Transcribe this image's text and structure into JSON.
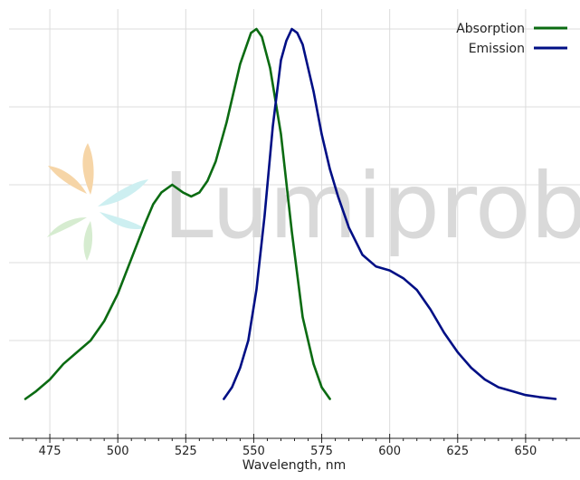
{
  "watermark": {
    "text": "Lumiprobe",
    "petal_colors": [
      "#f6d5a7",
      "#cdeff1",
      "#d6ecd0"
    ]
  },
  "chart_data": {
    "type": "line",
    "title": "",
    "xlabel": "Wavelength, nm",
    "ylabel": "",
    "xlim": [
      460,
      670
    ],
    "ylim": [
      0,
      1
    ],
    "xticks": [
      475,
      500,
      525,
      550,
      575,
      600,
      625,
      650
    ],
    "grid": true,
    "legend_position": "top-right",
    "series": [
      {
        "name": "Absorption",
        "color": "#0b6b12",
        "x": [
          466,
          470,
          475,
          480,
          485,
          490,
          495,
          500,
          505,
          510,
          513,
          516,
          520,
          524,
          527,
          530,
          533,
          536,
          540,
          545,
          549,
          551,
          553,
          556,
          560,
          564,
          568,
          572,
          575,
          578
        ],
        "y": [
          0.05,
          0.07,
          0.1,
          0.14,
          0.17,
          0.2,
          0.25,
          0.32,
          0.41,
          0.5,
          0.55,
          0.58,
          0.6,
          0.58,
          0.57,
          0.58,
          0.61,
          0.66,
          0.76,
          0.91,
          0.99,
          1.0,
          0.98,
          0.9,
          0.73,
          0.48,
          0.26,
          0.14,
          0.08,
          0.05
        ]
      },
      {
        "name": "Emission",
        "color": "#000f85",
        "x": [
          539,
          542,
          545,
          548,
          551,
          554,
          557,
          560,
          562,
          564,
          566,
          568,
          570,
          572,
          575,
          578,
          581,
          585,
          590,
          595,
          600,
          605,
          610,
          615,
          620,
          625,
          630,
          635,
          640,
          645,
          650,
          655,
          661
        ],
        "y": [
          0.05,
          0.08,
          0.13,
          0.2,
          0.33,
          0.52,
          0.75,
          0.92,
          0.97,
          1.0,
          0.99,
          0.96,
          0.9,
          0.84,
          0.73,
          0.64,
          0.57,
          0.49,
          0.42,
          0.39,
          0.38,
          0.36,
          0.33,
          0.28,
          0.22,
          0.17,
          0.13,
          0.1,
          0.08,
          0.07,
          0.06,
          0.055,
          0.05
        ]
      }
    ]
  }
}
